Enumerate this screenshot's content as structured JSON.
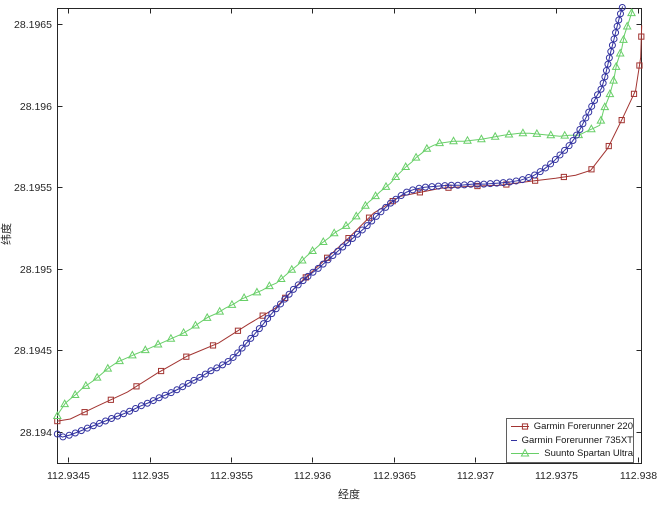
{
  "figure": {
    "background_color": "#ffffff",
    "axis_color": "#262626",
    "text_color": "#262626"
  },
  "chart_data": {
    "type": "line",
    "title": "",
    "xlabel": "经度",
    "ylabel": "纬度",
    "grid": false,
    "box": true,
    "xlim": [
      112.93443,
      112.93802
    ],
    "ylim": [
      28.19381,
      28.1966
    ],
    "xticks": {
      "values": [
        112.9345,
        112.935,
        112.9355,
        112.936,
        112.9365,
        112.937,
        112.9375,
        112.938
      ],
      "labels": [
        "112.9345",
        "112.935",
        "112.9355",
        "112.936",
        "112.9365",
        "112.937",
        "112.9375",
        "112.938"
      ]
    },
    "yticks": {
      "values": [
        28.194,
        28.1945,
        28.195,
        28.1955,
        28.196,
        28.1965
      ],
      "labels": [
        "28.194",
        "28.1945",
        "28.195",
        "28.1955",
        "28.196",
        "28.1965"
      ]
    },
    "legend": {
      "position": "southeast",
      "border_color": "#5f5f5f",
      "entries": [
        "Garmin Forerunner 220",
        "Garmin Forerunner 735XT",
        "Suunto Spartan Ultra"
      ]
    },
    "series": [
      {
        "name": "Garmin Forerunner 220",
        "color": "#a23431",
        "marker": "square",
        "points": [
          [
            112.934432,
            28.194067
          ],
          [
            112.934512,
            28.19408
          ],
          [
            112.934678,
            28.194159
          ],
          [
            112.934863,
            28.194245
          ],
          [
            112.935047,
            28.194361
          ],
          [
            112.935232,
            28.194466
          ],
          [
            112.935423,
            28.194545
          ],
          [
            112.935607,
            28.194662
          ],
          [
            112.935773,
            28.19476
          ],
          [
            112.935908,
            28.194901
          ],
          [
            112.936062,
            28.195042
          ],
          [
            112.936222,
            28.195189
          ],
          [
            112.936376,
            28.195342
          ],
          [
            112.936542,
            28.195446
          ],
          [
            112.936788,
            28.195495
          ],
          [
            112.936973,
            28.195507
          ],
          [
            112.937157,
            28.195513
          ],
          [
            112.937341,
            28.195538
          ],
          [
            112.937495,
            28.195556
          ],
          [
            112.937618,
            28.195575
          ],
          [
            112.937711,
            28.195605
          ],
          [
            112.937815,
            28.19574
          ],
          [
            112.937907,
            28.195924
          ],
          [
            112.937987,
            28.196095
          ],
          [
            112.938018,
            28.196297
          ],
          [
            112.938024,
            28.196493
          ]
        ]
      },
      {
        "name": "Garmin Forerunner 735XT",
        "color": "#3232a0",
        "marker": "circle",
        "points": [
          [
            112.934432,
            28.193988
          ],
          [
            112.934463,
            28.193969
          ],
          [
            112.934512,
            28.193982
          ],
          [
            112.934574,
            28.194006
          ],
          [
            112.934635,
            28.194031
          ],
          [
            112.934697,
            28.194055
          ],
          [
            112.934758,
            28.19408
          ],
          [
            112.93482,
            28.194104
          ],
          [
            112.934881,
            28.194129
          ],
          [
            112.934943,
            28.194159
          ],
          [
            112.935004,
            28.194184
          ],
          [
            112.935066,
            28.194214
          ],
          [
            112.935127,
            28.194239
          ],
          [
            112.935189,
            28.19427
          ],
          [
            112.93525,
            28.194306
          ],
          [
            112.935312,
            28.194337
          ],
          [
            112.935373,
            28.194374
          ],
          [
            112.935435,
            28.194404
          ],
          [
            112.935496,
            28.194441
          ],
          [
            112.935546,
            28.19449
          ],
          [
            112.935595,
            28.194545
          ],
          [
            112.935644,
            28.1946
          ],
          [
            112.935693,
            28.194656
          ],
          [
            112.935742,
            28.194717
          ],
          [
            112.935792,
            28.194772
          ],
          [
            112.935841,
            28.194827
          ],
          [
            112.93589,
            28.194882
          ],
          [
            112.935939,
            28.194925
          ],
          [
            112.935988,
            28.194968
          ],
          [
            112.936038,
            28.195005
          ],
          [
            112.936087,
            28.195048
          ],
          [
            112.936136,
            28.195091
          ],
          [
            112.936185,
            28.195133
          ],
          [
            112.936234,
            28.195176
          ],
          [
            112.936284,
            28.195219
          ],
          [
            112.936333,
            28.195262
          ],
          [
            112.936382,
            28.195311
          ],
          [
            112.936431,
            28.19536
          ],
          [
            112.93648,
            28.195403
          ],
          [
            112.93653,
            28.19544
          ],
          [
            112.936579,
            28.195471
          ],
          [
            112.936628,
            28.195489
          ],
          [
            112.936689,
            28.195501
          ],
          [
            112.936763,
            28.195507
          ],
          [
            112.936837,
            28.195513
          ],
          [
            112.936911,
            28.195513
          ],
          [
            112.936985,
            28.19552
          ],
          [
            112.937058,
            28.19552
          ],
          [
            112.937132,
            28.195526
          ],
          [
            112.937206,
            28.195532
          ],
          [
            112.93728,
            28.195544
          ],
          [
            112.937354,
            28.195569
          ],
          [
            112.937415,
            28.195605
          ],
          [
            112.937477,
            28.195654
          ],
          [
            112.937526,
            28.195703
          ],
          [
            112.937575,
            28.195752
          ],
          [
            112.937612,
            28.195801
          ],
          [
            112.937649,
            28.195863
          ],
          [
            112.937686,
            28.195936
          ],
          [
            112.937717,
            28.195997
          ],
          [
            112.937747,
            28.196059
          ],
          [
            112.937778,
            28.196108
          ],
          [
            112.937796,
            28.196169
          ],
          [
            112.937815,
            28.196248
          ],
          [
            112.937833,
            28.196328
          ],
          [
            112.937852,
            28.196401
          ],
          [
            112.93787,
            28.196475
          ],
          [
            112.937889,
            28.196548
          ],
          [
            112.937907,
            28.19661
          ]
        ]
      },
      {
        "name": "Suunto Spartan Ultra",
        "color": "#68cf68",
        "marker": "triangle",
        "points": [
          [
            112.934432,
            28.194098
          ],
          [
            112.934445,
            28.194123
          ],
          [
            112.934482,
            28.194178
          ],
          [
            112.934518,
            28.194208
          ],
          [
            112.934549,
            28.194233
          ],
          [
            112.93458,
            28.194263
          ],
          [
            112.934623,
            28.194294
          ],
          [
            112.93466,
            28.194319
          ],
          [
            112.934703,
            28.194355
          ],
          [
            112.934746,
            28.194392
          ],
          [
            112.934801,
            28.194429
          ],
          [
            112.934857,
            28.194453
          ],
          [
            112.934912,
            28.194478
          ],
          [
            112.934974,
            28.194502
          ],
          [
            112.935029,
            28.194527
          ],
          [
            112.935084,
            28.194551
          ],
          [
            112.93514,
            28.194576
          ],
          [
            112.935195,
            28.1946
          ],
          [
            112.93525,
            28.194631
          ],
          [
            112.935312,
            28.194674
          ],
          [
            112.935361,
            28.194705
          ],
          [
            112.935416,
            28.194729
          ],
          [
            112.935466,
            28.19476
          ],
          [
            112.935515,
            28.194784
          ],
          [
            112.935564,
            28.194815
          ],
          [
            112.935607,
            28.194833
          ],
          [
            112.93565,
            28.194852
          ],
          [
            112.935693,
            28.19487
          ],
          [
            112.935736,
            28.194895
          ],
          [
            112.935779,
            28.194913
          ],
          [
            112.935822,
            28.19495
          ],
          [
            112.935871,
            28.194993
          ],
          [
            112.935915,
            28.195029
          ],
          [
            112.935964,
            28.195078
          ],
          [
            112.936007,
            28.195115
          ],
          [
            112.93605,
            28.195152
          ],
          [
            112.936099,
            28.195189
          ],
          [
            112.936142,
            28.195225
          ],
          [
            112.936185,
            28.19525
          ],
          [
            112.936222,
            28.195274
          ],
          [
            112.936265,
            28.195317
          ],
          [
            112.936302,
            28.19536
          ],
          [
            112.936345,
            28.195409
          ],
          [
            112.936382,
            28.19544
          ],
          [
            112.936413,
            28.195471
          ],
          [
            112.93645,
            28.195501
          ],
          [
            112.93648,
            28.195526
          ],
          [
            112.936517,
            28.195569
          ],
          [
            112.936548,
            28.195599
          ],
          [
            112.936579,
            28.19563
          ],
          [
            112.936609,
            28.195654
          ],
          [
            112.93664,
            28.195685
          ],
          [
            112.936671,
            28.195709
          ],
          [
            112.936708,
            28.19574
          ],
          [
            112.936745,
            28.195758
          ],
          [
            112.936782,
            28.195771
          ],
          [
            112.936825,
            28.195777
          ],
          [
            112.936868,
            28.195783
          ],
          [
            112.936929,
            28.195783
          ],
          [
            112.936985,
            28.195789
          ],
          [
            112.93704,
            28.195795
          ],
          [
            112.937108,
            28.195807
          ],
          [
            112.937175,
            28.19582
          ],
          [
            112.937224,
            28.195826
          ],
          [
            112.937274,
            28.195832
          ],
          [
            112.937335,
            28.195832
          ],
          [
            112.937397,
            28.195826
          ],
          [
            112.937458,
            28.19582
          ],
          [
            112.93752,
            28.195814
          ],
          [
            112.937581,
            28.19582
          ],
          [
            112.937637,
            28.19582
          ],
          [
            112.937686,
            28.195844
          ],
          [
            112.937729,
            28.195863
          ],
          [
            112.937766,
            28.195881
          ],
          [
            112.93779,
            28.195973
          ],
          [
            112.937827,
            28.196065
          ],
          [
            112.937852,
            28.196157
          ],
          [
            112.93787,
            28.196255
          ],
          [
            112.937901,
            28.196347
          ],
          [
            112.937919,
            28.196439
          ],
          [
            112.93795,
            28.196531
          ],
          [
            112.937969,
            28.196592
          ]
        ]
      }
    ]
  }
}
